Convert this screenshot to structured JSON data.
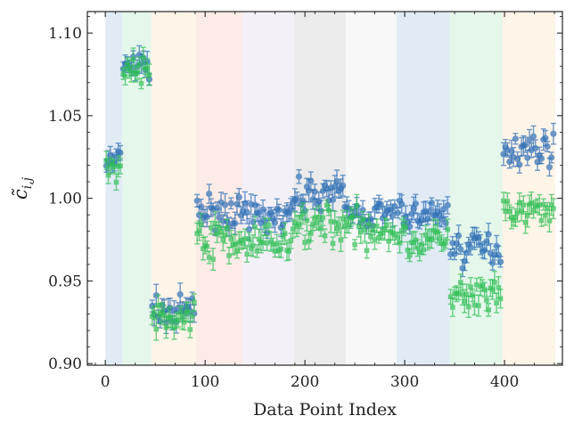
{
  "chart_data": {
    "type": "scatter",
    "xlabel": "Data Point Index",
    "ylabel": "c̃",
    "ylabel_subscript": "i,j",
    "xlim": [
      -18,
      458
    ],
    "ylim": [
      0.899,
      1.113
    ],
    "x_ticks": [
      0,
      100,
      200,
      300,
      400
    ],
    "x_tick_labels": [
      "0",
      "100",
      "200",
      "300",
      "400"
    ],
    "y_ticks": [
      0.9,
      0.95,
      1.0,
      1.05,
      1.1
    ],
    "y_tick_labels": [
      "0.90",
      "0.95",
      "1.00",
      "1.05",
      "1.10"
    ],
    "grid": false,
    "error_bars": true,
    "bands": [
      {
        "x0": 0,
        "x1": 17,
        "color": "#6a9bd1"
      },
      {
        "x0": 17,
        "x1": 46,
        "color": "#7fd69a"
      },
      {
        "x0": 46,
        "x1": 91,
        "color": "#f8c98a"
      },
      {
        "x0": 91,
        "x1": 137,
        "color": "#f29a87"
      },
      {
        "x0": 137,
        "x1": 189,
        "color": "#c7b3d6"
      },
      {
        "x0": 189,
        "x1": 241,
        "color": "#9a9a9a"
      },
      {
        "x0": 241,
        "x1": 292,
        "color": "#dedede"
      },
      {
        "x0": 292,
        "x1": 345,
        "color": "#6a9bd1"
      },
      {
        "x0": 345,
        "x1": 398,
        "color": "#7fd69a"
      },
      {
        "x0": 398,
        "x1": 451,
        "color": "#f8c98a"
      }
    ],
    "series": [
      {
        "color": "#2f6fb5",
        "marker": "circle",
        "segments": [
          {
            "x0": 0,
            "x1": 17,
            "mean": 1.022,
            "spread": 0.012
          },
          {
            "x0": 17,
            "x1": 46,
            "mean": 1.08,
            "spread": 0.014
          },
          {
            "x0": 46,
            "x1": 91,
            "mean": 0.932,
            "spread": 0.012
          },
          {
            "x0": 91,
            "x1": 137,
            "mean": 0.992,
            "spread": 0.014
          },
          {
            "x0": 137,
            "x1": 189,
            "mean": 0.988,
            "spread": 0.014
          },
          {
            "x0": 189,
            "x1": 241,
            "mean": 1.003,
            "spread": 0.012
          },
          {
            "x0": 241,
            "x1": 292,
            "mean": 0.99,
            "spread": 0.013
          },
          {
            "x0": 292,
            "x1": 345,
            "mean": 0.99,
            "spread": 0.013
          },
          {
            "x0": 345,
            "x1": 398,
            "mean": 0.97,
            "spread": 0.015
          },
          {
            "x0": 398,
            "x1": 451,
            "mean": 1.03,
            "spread": 0.013
          }
        ]
      },
      {
        "color": "#2fbf55",
        "marker": "square",
        "segments": [
          {
            "x0": 0,
            "x1": 17,
            "mean": 1.018,
            "spread": 0.01
          },
          {
            "x0": 17,
            "x1": 46,
            "mean": 1.078,
            "spread": 0.013
          },
          {
            "x0": 46,
            "x1": 91,
            "mean": 0.928,
            "spread": 0.012
          },
          {
            "x0": 91,
            "x1": 137,
            "mean": 0.975,
            "spread": 0.018
          },
          {
            "x0": 137,
            "x1": 189,
            "mean": 0.972,
            "spread": 0.018
          },
          {
            "x0": 189,
            "x1": 241,
            "mean": 0.985,
            "spread": 0.018
          },
          {
            "x0": 241,
            "x1": 292,
            "mean": 0.982,
            "spread": 0.017
          },
          {
            "x0": 292,
            "x1": 345,
            "mean": 0.975,
            "spread": 0.017
          },
          {
            "x0": 345,
            "x1": 398,
            "mean": 0.94,
            "spread": 0.016
          },
          {
            "x0": 398,
            "x1": 451,
            "mean": 0.992,
            "spread": 0.016
          }
        ]
      }
    ]
  }
}
